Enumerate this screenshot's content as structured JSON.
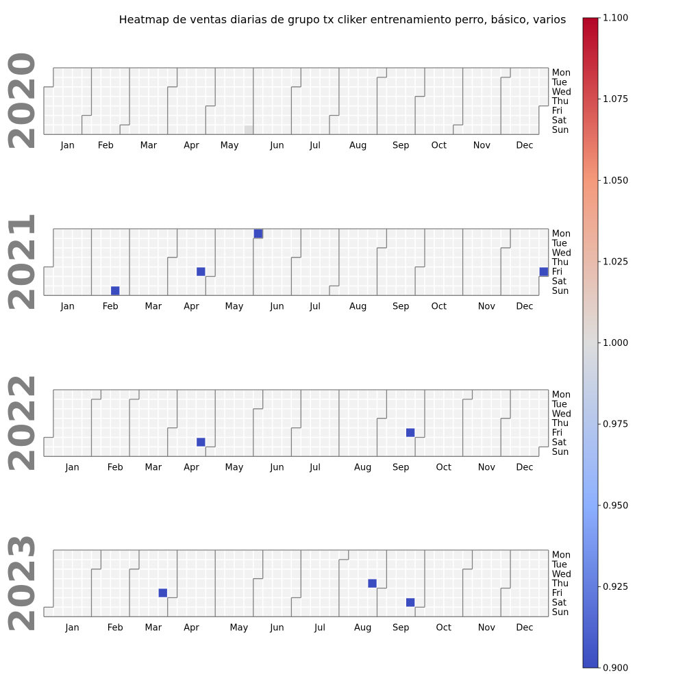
{
  "chart_data": {
    "type": "heatmap",
    "title": "Heatmap de ventas diarias de grupo tx cliker entrenamiento perro, básico, varios",
    "years": [
      2020,
      2021,
      2022,
      2023
    ],
    "weekdays": [
      "Mon",
      "Tue",
      "Wed",
      "Thu",
      "Fri",
      "Sat",
      "Sun"
    ],
    "months": [
      "Jan",
      "Feb",
      "Mar",
      "Apr",
      "May",
      "Jun",
      "Jul",
      "Aug",
      "Sep",
      "Oct",
      "Nov",
      "Dec"
    ],
    "colorbar": {
      "min": 0.9,
      "max": 1.1,
      "ticks": [
        "0.900",
        "0.925",
        "0.950",
        "0.975",
        "1.000",
        "1.025",
        "1.050",
        "1.075",
        "1.100"
      ],
      "colormap": "coolwarm"
    },
    "empty_color": "#f2f2f2",
    "highlight_colors": {
      "low": "#3b4cc0",
      "neutral": "#dddddd"
    },
    "data_points": [
      {
        "date": "2020-05-31",
        "value": 1.0
      },
      {
        "date": "2021-02-21",
        "value": 0.9
      },
      {
        "date": "2021-04-23",
        "value": 0.9
      },
      {
        "date": "2021-05-31",
        "value": 0.9
      },
      {
        "date": "2021-12-31",
        "value": 0.9
      },
      {
        "date": "2022-04-23",
        "value": 0.9
      },
      {
        "date": "2022-09-23",
        "value": 0.9
      },
      {
        "date": "2023-03-24",
        "value": 0.9
      },
      {
        "date": "2023-08-24",
        "value": 0.9
      },
      {
        "date": "2023-09-23",
        "value": 0.9
      }
    ]
  }
}
